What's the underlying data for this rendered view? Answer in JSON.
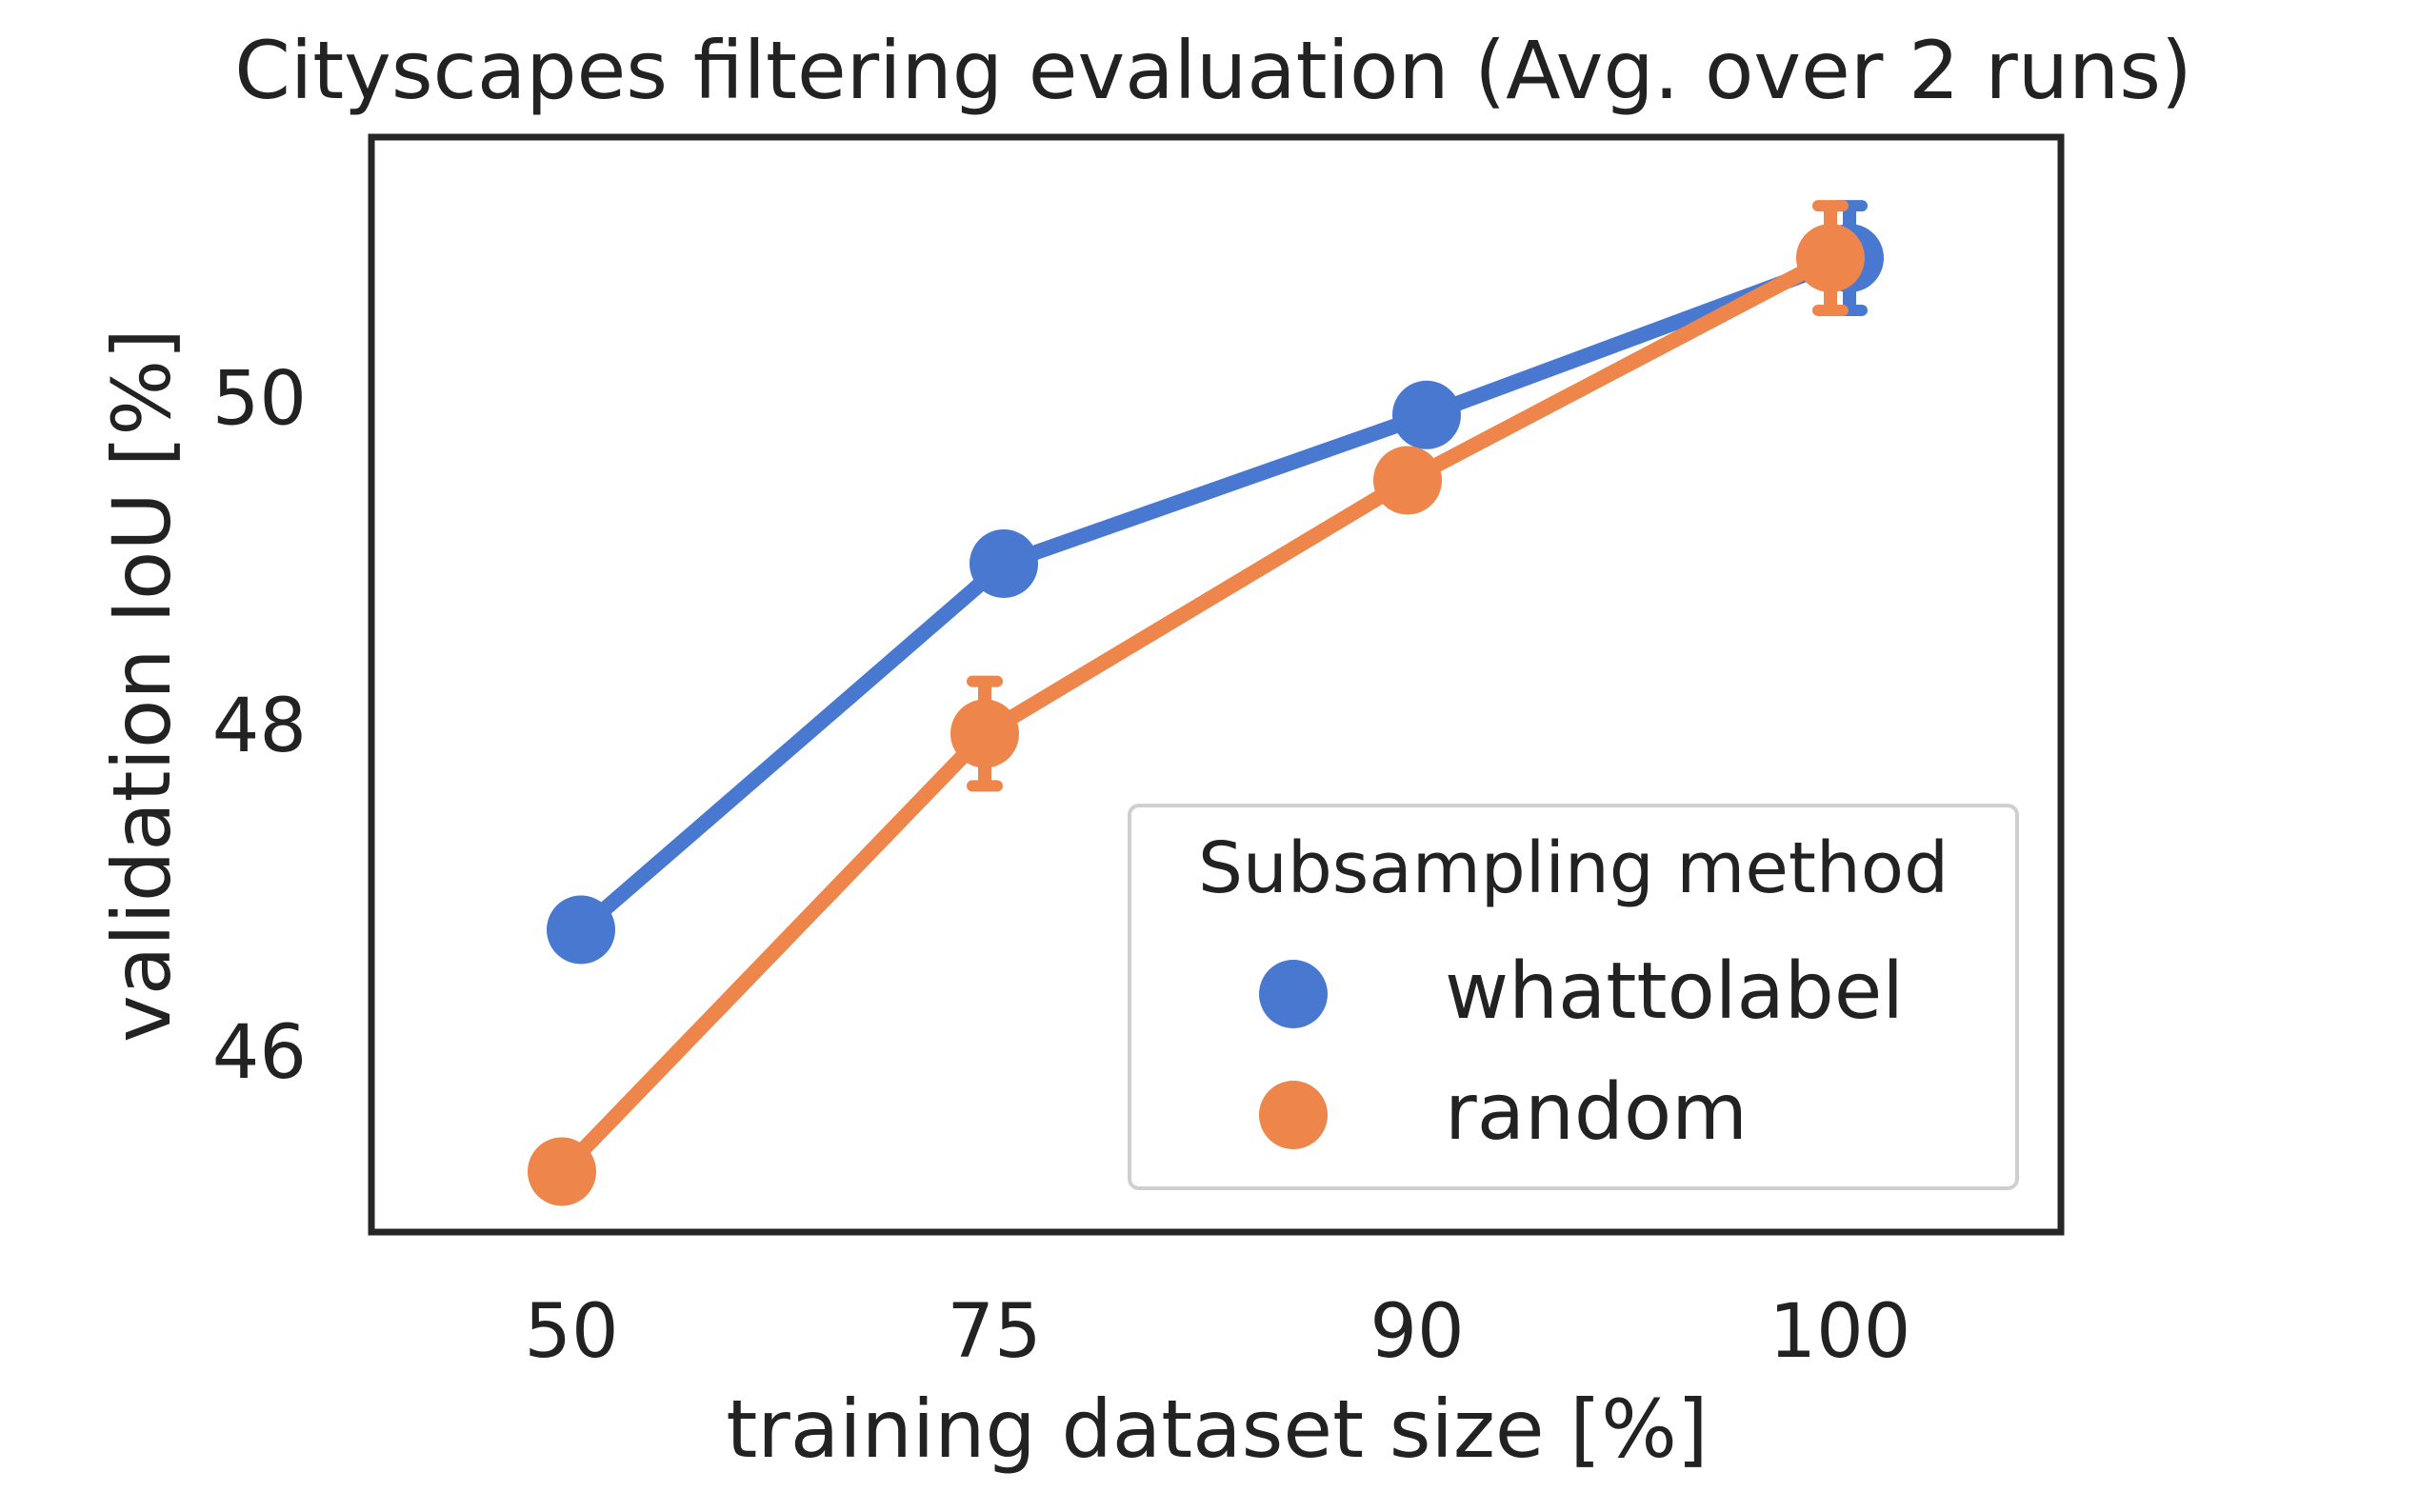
{
  "chart_data": {
    "type": "line",
    "title": "Cityscapes filtering evaluation (Avg. over 2 runs)",
    "xlabel": "training dataset size [%]",
    "ylabel": "validation IoU [%]",
    "categories": [
      "50",
      "75",
      "90",
      "100"
    ],
    "ylim": [
      44.9,
      51.6
    ],
    "yticks": [
      46,
      48,
      50
    ],
    "grid": false,
    "legend": {
      "title": "Subsampling method",
      "position": "lower-right"
    },
    "series": [
      {
        "name": "whattolabel",
        "color": "#4878d0",
        "values": [
          46.75,
          48.99,
          49.9,
          50.86
        ],
        "errors": [
          0,
          0,
          0,
          0.32
        ]
      },
      {
        "name": "random",
        "color": "#ee854a",
        "values": [
          45.27,
          47.95,
          49.5,
          50.86
        ],
        "errors": [
          0,
          0.32,
          0,
          0.32
        ]
      }
    ]
  }
}
